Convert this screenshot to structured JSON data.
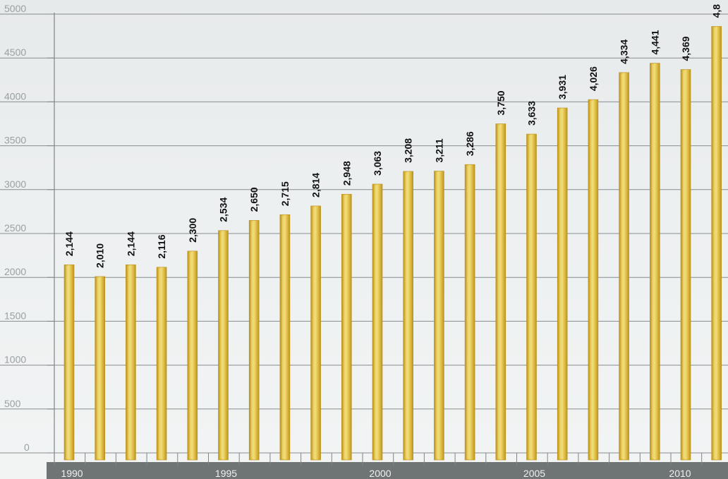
{
  "chart_data": {
    "type": "bar",
    "title": "",
    "xlabel": "",
    "ylabel": "",
    "x_tick_labels": [
      "1990",
      "1995",
      "2000",
      "2005",
      "2010"
    ],
    "y_tick_labels": [
      "0",
      "500",
      "1000",
      "1500",
      "2000",
      "2500",
      "3000",
      "3500",
      "4000",
      "4500",
      "5000"
    ],
    "categories": [
      "1990",
      "1991",
      "1992",
      "1993",
      "1994",
      "1995",
      "1996",
      "1997",
      "1998",
      "1999",
      "2000",
      "2001",
      "2002",
      "2003",
      "2004",
      "2005",
      "2006",
      "2007",
      "2008",
      "2009",
      "2010"
    ],
    "values": [
      2144,
      2010,
      2144,
      2116,
      2300,
      2534,
      2650,
      2715,
      2814,
      2948,
      3063,
      3208,
      3211,
      3286,
      3750,
      3633,
      3931,
      4026,
      4334,
      4441,
      4369
    ],
    "data_labels": [
      "2,144",
      "2,010",
      "2,144",
      "2,116",
      "2,300",
      "2,534",
      "2,650",
      "2,715",
      "2,814",
      "2,948",
      "3,063",
      "3,208",
      "3,211",
      "3,286",
      "3,750",
      "3,633",
      "3,931",
      "4,026",
      "4,334",
      "4,441",
      "4,369"
    ],
    "partial_last_category": "2011",
    "partial_last_label": "4,8",
    "ylim": [
      0,
      5000
    ],
    "grid": true,
    "legend": "none",
    "colors": {
      "background": "#e9ebec",
      "bar": "#d9b63b",
      "bar_highlight": "#f3dc76",
      "bar_shadow": "#b99222",
      "grid": "#7f8588",
      "axis_band": "#6f7475",
      "year_text": "#f0f0f0",
      "tick_text": "#9aa0a2",
      "label_text": "#111111"
    }
  }
}
